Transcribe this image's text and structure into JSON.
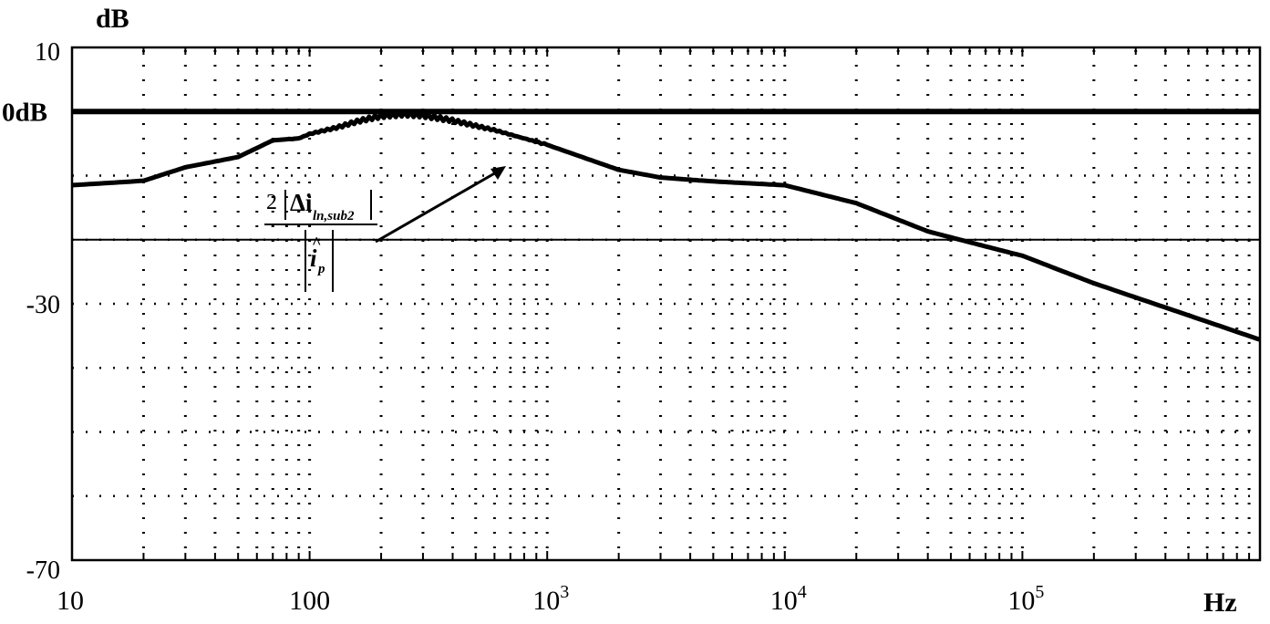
{
  "chart_data": {
    "type": "line",
    "title": "",
    "xlabel": "Hz",
    "ylabel": "dB",
    "x_scale": "log",
    "xlim": [
      10,
      1000000
    ],
    "ylim": [
      -70,
      10
    ],
    "grid": true,
    "x_ticks": [
      {
        "value": 10,
        "label": "10"
      },
      {
        "value": 100,
        "label": "100"
      },
      {
        "value": 1000,
        "base": "10",
        "exp": "3"
      },
      {
        "value": 10000,
        "base": "10",
        "exp": "4"
      },
      {
        "value": 100000,
        "base": "10",
        "exp": "5"
      }
    ],
    "y_ticks": [
      {
        "value": 10,
        "label": "10"
      },
      {
        "value": -30,
        "label": "-30"
      },
      {
        "value": -70,
        "label": "-70"
      }
    ],
    "reference_lines": [
      {
        "y": 0,
        "label": "0dB",
        "style": "thick"
      },
      {
        "y": -20,
        "label": "",
        "style": "thin"
      }
    ],
    "series": [
      {
        "x": [
          10,
          20,
          30,
          50,
          70,
          90,
          100,
          130,
          160,
          200,
          250,
          300,
          400,
          600,
          1000,
          2000,
          3000,
          5000,
          10000,
          20000,
          40000,
          80000,
          100000,
          200000,
          500000,
          1000000
        ],
        "y": [
          -11.5,
          -10.8,
          -8.7,
          -7.1,
          -4.5,
          -4.2,
          -3.5,
          -2.5,
          -1.5,
          -0.7,
          -0.4,
          -0.6,
          -1.4,
          -2.9,
          -5.2,
          -9.1,
          -10.3,
          -10.9,
          -11.5,
          -14.3,
          -18.7,
          -21.6,
          -22.5,
          -26.8,
          -31.8,
          -35.6
        ]
      }
    ],
    "annotations": [
      {
        "type": "formula",
        "numerator_coeff": "2",
        "numerator_symbol": "Δi",
        "numerator_subscript": "ln,sub2",
        "denominator_symbol": "i",
        "denominator_hat": "^",
        "denominator_subscript": "p"
      }
    ]
  }
}
